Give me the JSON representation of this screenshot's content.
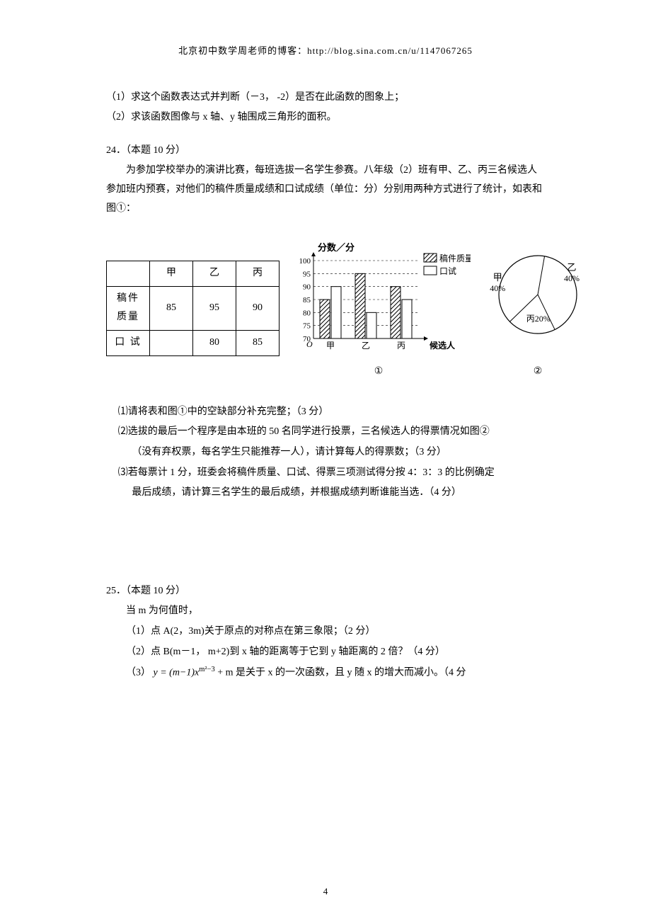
{
  "header": "北京初中数学周老师的博客：http://blog.sina.com.cn/u/1147067265",
  "q_prev": {
    "line1": "（1）求这个函数表达式并判断（－3，  -2）是否在此函数的图象上；",
    "line2": "（2）求该函数图像与 x 轴、y 轴围成三角形的面积。"
  },
  "q24": {
    "head": "24．（本题 10 分）",
    "body": "为参加学校举办的演讲比赛，每班选拔一名学生参赛。八年级（2）班有甲、乙、丙三名候选人参加班内预赛，对他们的稿件质量成绩和口试成绩（单位：分）分别用两种方式进行了统计，如表和图①：",
    "table": {
      "cols": [
        "",
        "甲",
        "乙",
        "丙"
      ],
      "rows": [
        {
          "label": "稿件质量",
          "vals": [
            "85",
            "95",
            "90"
          ]
        },
        {
          "label": "口  试",
          "vals": [
            "",
            "80",
            "85"
          ]
        }
      ]
    },
    "barchart": {
      "ylabel": "分数／分",
      "xlabel": "候选人",
      "ymax": 100,
      "ymin": 70,
      "yticks": [
        70,
        75,
        80,
        85,
        90,
        95,
        100
      ],
      "cats": [
        "甲",
        "乙",
        "丙"
      ],
      "series": [
        {
          "name": "稿件质量",
          "pattern": "hatch",
          "values": [
            85,
            95,
            90
          ]
        },
        {
          "name": "口试",
          "pattern": "blank",
          "values": [
            90,
            80,
            85
          ]
        }
      ],
      "legend": [
        {
          "swatch": "hatch",
          "label": "稿件质量"
        },
        {
          "swatch": "blank",
          "label": "口试"
        }
      ],
      "hatch_color": "#000000",
      "bg_color": "#ffffff",
      "axis_color": "#000000",
      "grid_style": "dash",
      "fig_label": "①",
      "origin_label": "O"
    },
    "piechart": {
      "slices": [
        {
          "label": "甲",
          "pct": "40%",
          "value": 40
        },
        {
          "label": "乙",
          "pct": "40%",
          "value": 40
        },
        {
          "label": "丙",
          "pct": "20%",
          "value": 20,
          "label_combined": "丙20%"
        }
      ],
      "stroke": "#000000",
      "fill": "#ffffff",
      "fig_label": "②"
    },
    "sub1": "⑴请将表和图①中的空缺部分补充完整；（3 分）",
    "sub2a": "⑵选拔的最后一个程序是由本班的 50 名同学进行投票，三名候选人的得票情况如图②",
    "sub2b": "（没有弃权票，每名学生只能推荐一人），请计算每人的得票数；（3 分）",
    "sub3a": "⑶若每票计 1 分，班委会将稿件质量、口试、得票三项测试得分按 4：3：3 的比例确定",
    "sub3b": "最后成绩，请计算三名学生的最后成绩，并根据成绩判断谁能当选．（4 分）"
  },
  "q25": {
    "head": "25．（本题 10 分）",
    "lead": "当 m 为何值时，",
    "s1": "（1）点 A(2，3m)关于原点的对称点在第三象限；（2 分）",
    "s2": "（2）点 B(m－1，  m+2)到 x 轴的距离等于它到 y 轴距离的 2 倍？（4 分）",
    "s3_pre": "（3）",
    "s3_math": "y = (m−1)x",
    "s3_exp": "m²−3",
    "s3_post": " + m 是关于 x 的一次函数，且 y 随 x 的增大而减小。（4 分"
  },
  "pagenum": "4"
}
